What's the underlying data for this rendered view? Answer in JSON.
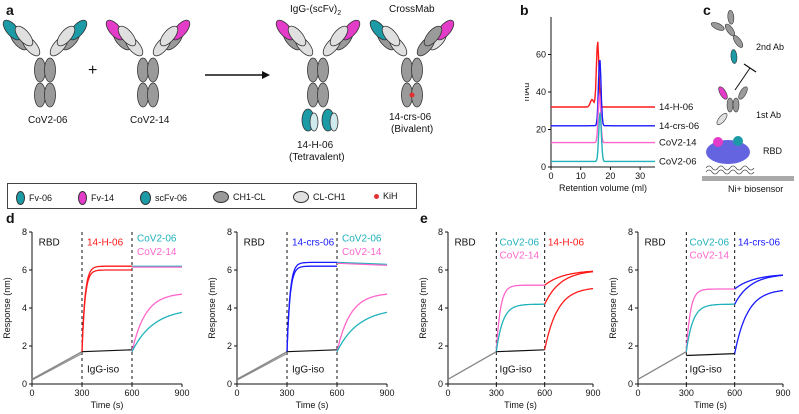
{
  "panels": {
    "a": "a",
    "b": "b",
    "c": "c",
    "d": "d",
    "e": "e"
  },
  "panel_a": {
    "labels": {
      "cov206": "CoV2-06",
      "cov214": "CoV2-14",
      "plus": "+",
      "igg_scfv": "IgG-(scFv)",
      "igg_scfv_sub": "2",
      "crossmab": "CrossMab",
      "h06": "14-H-06",
      "h06_sub": "(Tetravalent)",
      "crs06": "14-crs-06",
      "crs06_sub": "(Bivalent)"
    },
    "legend": [
      {
        "label": "Fv-06",
        "color": "#1c9aa6"
      },
      {
        "label": "Fv-14",
        "color": "#e23cc8"
      },
      {
        "label": "scFv-06",
        "color": "#1c9aa6"
      },
      {
        "label": "CH1-CL",
        "color": "#9a9a9a"
      },
      {
        "label": "CL-CH1",
        "color": "#e0e0e0"
      },
      {
        "label": "KiH",
        "color": "#e23030"
      }
    ]
  },
  "panel_c": {
    "second_ab": "2nd Ab",
    "first_ab": "1st Ab",
    "rbd": "RBD",
    "biosensor": "Ni+ biosensor"
  },
  "chart_data": [
    {
      "id": "b",
      "type": "line",
      "xlabel": "Retention volume (ml)",
      "ylabel": "mAu",
      "xlim": [
        0,
        35
      ],
      "ylim": [
        0,
        80
      ],
      "xticks": [
        0,
        10,
        20,
        30
      ],
      "yticks": [
        0,
        20,
        40,
        60
      ],
      "series": [
        {
          "name": "14-H-06",
          "color": "#ff1a1a",
          "baseline": 32,
          "peak_x": 15.7,
          "peak_y": 67,
          "shoulder": true
        },
        {
          "name": "14-crs-06",
          "color": "#1a1aff",
          "baseline": 22,
          "peak_x": 16.4,
          "peak_y": 58,
          "shoulder": false
        },
        {
          "name": "CoV2-14",
          "color": "#ff66cc",
          "baseline": 13,
          "peak_x": 16.3,
          "peak_y": 39,
          "shoulder": false
        },
        {
          "name": "CoV2-06",
          "color": "#20b2bb",
          "baseline": 3,
          "peak_x": 16.5,
          "peak_y": 29,
          "shoulder": false
        }
      ]
    },
    {
      "id": "d1",
      "type": "line",
      "xlabel": "Time (s)",
      "ylabel": "Response (nm)",
      "xlim": [
        0,
        900
      ],
      "ylim": [
        0,
        8
      ],
      "xticks": [
        0,
        300,
        600,
        900
      ],
      "yticks": [
        0,
        2,
        4,
        6,
        8
      ],
      "annotations": {
        "rbd": "RBD",
        "second": "14-H-06",
        "second_color": "#ff1a1a",
        "third_a": "CoV2-06",
        "third_b": "CoV2-14",
        "iso": "IgG-iso"
      },
      "phases": {
        "load_end": 1.7,
        "second_plateau": 6.2,
        "second_start": 1.7,
        "iso_level": 1.8,
        "third_start_a": 1.7,
        "third_end_a": 4.0,
        "third_start_b": 1.7,
        "third_end_b": 4.8,
        "third_sat": 6.2
      }
    },
    {
      "id": "d2",
      "type": "line",
      "xlabel": "Time (s)",
      "ylabel": "Response (nm)",
      "xlim": [
        0,
        900
      ],
      "ylim": [
        0,
        8
      ],
      "xticks": [
        0,
        300,
        600,
        900
      ],
      "yticks": [
        0,
        2,
        4,
        6,
        8
      ],
      "annotations": {
        "rbd": "RBD",
        "second": "14-crs-06",
        "second_color": "#1a1aff",
        "third_a": "CoV2-06",
        "third_b": "CoV2-14",
        "iso": "IgG-iso"
      },
      "phases": {
        "load_end": 1.7,
        "second_plateau": 6.4,
        "second_start": 1.7,
        "iso_level": 1.8,
        "third_start_a": 1.7,
        "third_end_a": 4.0,
        "third_start_b": 1.7,
        "third_end_b": 4.8,
        "third_sat": 6.3
      }
    },
    {
      "id": "e1",
      "type": "line",
      "xlabel": "Time (s)",
      "ylabel": "Response (nm)",
      "xlim": [
        0,
        900
      ],
      "ylim": [
        0,
        8
      ],
      "xticks": [
        0,
        300,
        600,
        900
      ],
      "yticks": [
        0,
        2,
        4,
        6,
        8
      ],
      "annotations": {
        "rbd": "RBD",
        "second_a": "CoV2-06",
        "second_b": "CoV2-14",
        "third": "14-H-06",
        "third_color": "#ff1a1a",
        "iso": "IgG-iso"
      },
      "phases": {
        "load_end": 1.7,
        "second_a_end": 4.2,
        "second_b_end": 5.2,
        "iso_level": 1.8,
        "third_a_end": 6.0,
        "third_b_end": 6.0,
        "third_iso_end": 5.1
      }
    },
    {
      "id": "e2",
      "type": "line",
      "xlabel": "Time (s)",
      "ylabel": "Response (nm)",
      "xlim": [
        0,
        900
      ],
      "ylim": [
        0,
        8
      ],
      "xticks": [
        0,
        300,
        600,
        900
      ],
      "yticks": [
        0,
        2,
        4,
        6,
        8
      ],
      "annotations": {
        "rbd": "RBD",
        "second_a": "CoV2-06",
        "second_b": "CoV2-14",
        "third": "14-crs-06",
        "third_color": "#1a1aff",
        "iso": "IgG-iso"
      },
      "phases": {
        "load_end": 1.7,
        "second_a_end": 4.2,
        "second_b_end": 5.0,
        "iso_level": 1.6,
        "third_a_end": 5.8,
        "third_b_end": 5.8,
        "third_iso_end": 5.0
      }
    }
  ],
  "colors": {
    "teal": "#20b2bb",
    "pink": "#ff66cc",
    "red": "#ff1a1a",
    "blue": "#1a1aff",
    "gray": "#888888",
    "black": "#111111"
  }
}
